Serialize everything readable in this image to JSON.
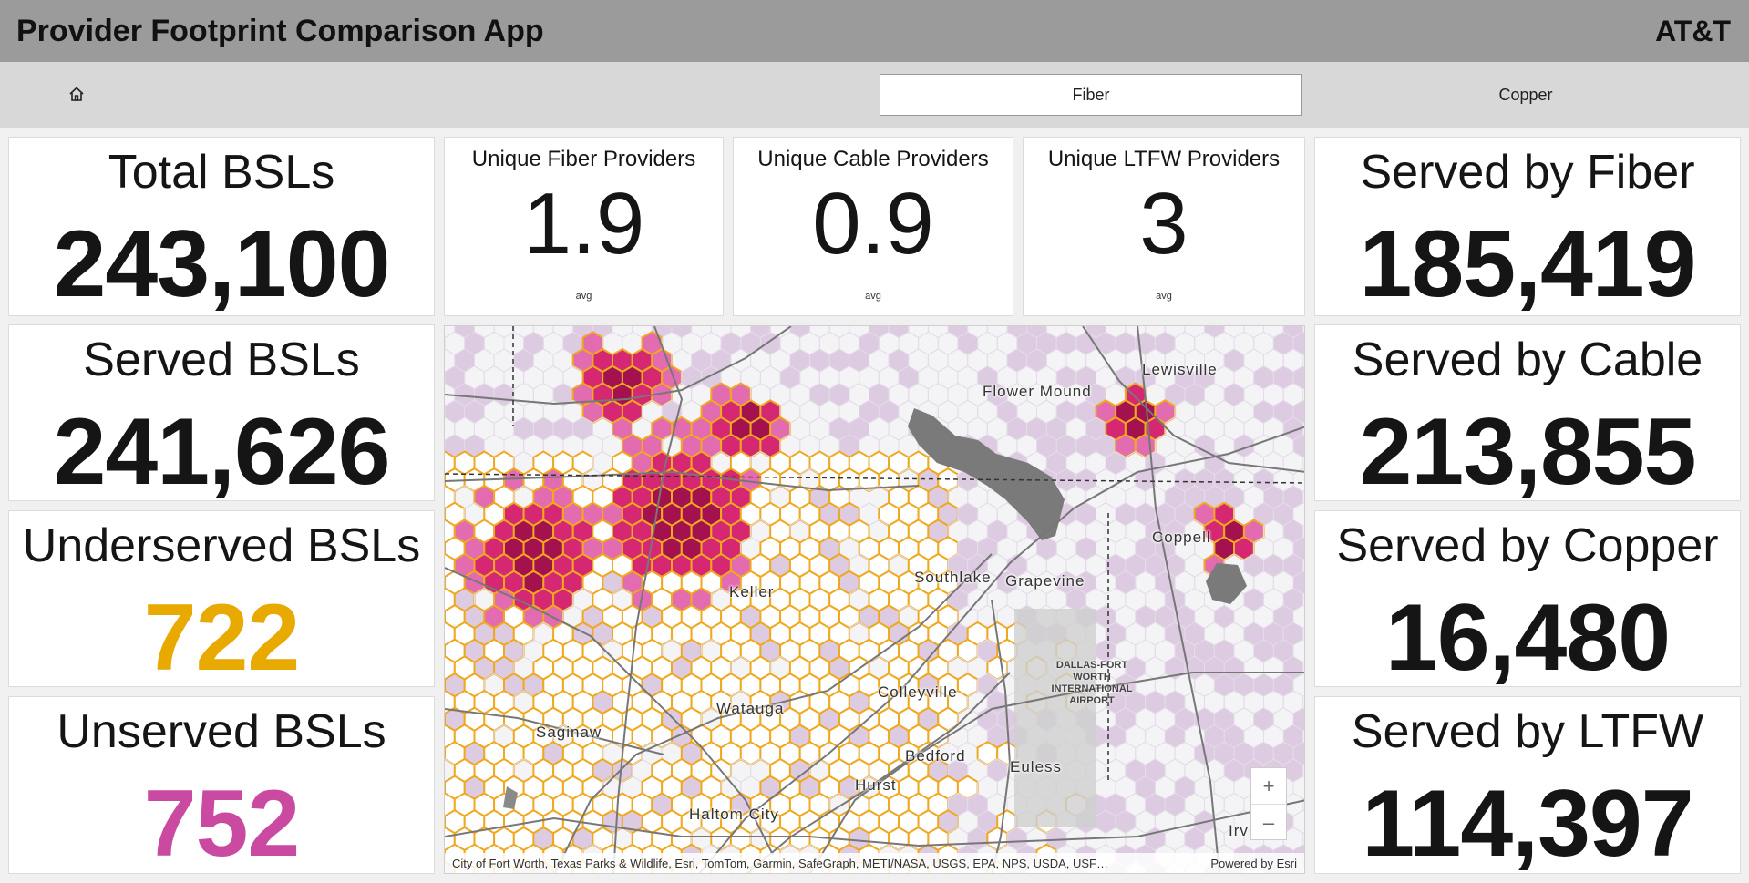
{
  "app": {
    "title": "Provider Footprint Comparison App",
    "brand": "AT&T"
  },
  "nav": {
    "home_icon": "home-icon",
    "tabs": [
      {
        "label": "Fiber",
        "active": true
      },
      {
        "label": "Copper",
        "active": false
      }
    ]
  },
  "left_cards": [
    {
      "label": "Total BSLs",
      "value": "243,100",
      "color": "#151515"
    },
    {
      "label": "Served BSLs",
      "value": "241,626",
      "color": "#151515"
    },
    {
      "label": "Underserved BSLs",
      "value": "722",
      "color": "#e8a900"
    },
    {
      "label": "Unserved BSLs",
      "value": "752",
      "color": "#c94aa0"
    }
  ],
  "middle_cards": [
    {
      "label": "Unique Fiber Providers",
      "value": "1.9",
      "sub": "avg"
    },
    {
      "label": "Unique Cable Providers",
      "value": "0.9",
      "sub": "avg"
    },
    {
      "label": "Unique LTFW Providers",
      "value": "3",
      "sub": "avg"
    }
  ],
  "right_cards": [
    {
      "label": "Served by Fiber",
      "value": "185,419"
    },
    {
      "label": "Served by Cable",
      "value": "213,855"
    },
    {
      "label": "Served by Copper",
      "value": "16,480"
    },
    {
      "label": "Served by LTFW",
      "value": "114,397"
    }
  ],
  "map": {
    "places": [
      "Lewisville",
      "Flower Mound",
      "Coppell",
      "Southlake",
      "Grapevine",
      "Keller",
      "Colleyville",
      "Watauga",
      "Saginaw",
      "Bedford",
      "Euless",
      "Hurst",
      "Haltom City",
      "Irv"
    ],
    "airport": "DALLAS-FORT WORTH INTERNATIONAL AIRPORT",
    "zoom_in": "+",
    "zoom_out": "–",
    "attribution": "City of Fort Worth, Texas Parks & Wildlife, Esri, TomTom, Garmin, SafeGraph, METI/NASA, USGS, EPA, NPS, USDA, USF…",
    "powered_by": "Powered by Esri",
    "colors": {
      "outline": "#f0a820",
      "dark": "#a3114f",
      "mid": "#d62872",
      "light": "#e36bb0",
      "faint": "#dccbe1",
      "water": "#7a7a7a"
    }
  }
}
